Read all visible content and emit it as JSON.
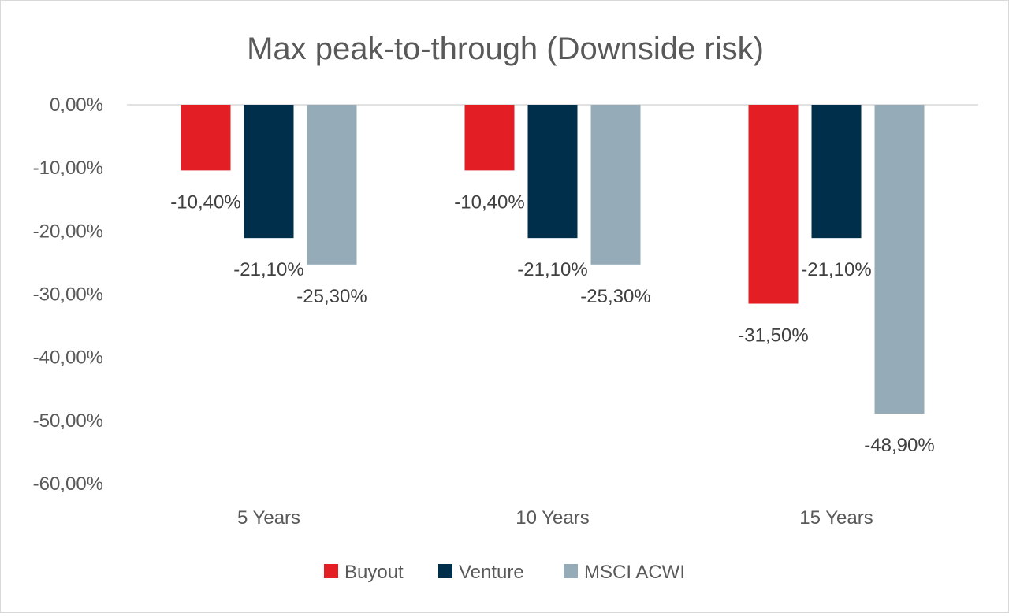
{
  "chart_data": {
    "type": "bar",
    "title": "Max peak-to-through (Downside risk)",
    "categories": [
      "5 Years",
      "10 Years",
      "15 Years"
    ],
    "series": [
      {
        "name": "Buyout",
        "color": "#e31e25",
        "values": [
          -10.4,
          -10.4,
          -31.5
        ],
        "labels": [
          "-10,40%",
          "-10,40%",
          "-31,50%"
        ]
      },
      {
        "name": "Venture",
        "color": "#002f4c",
        "values": [
          -21.1,
          -21.1,
          -21.1
        ],
        "labels": [
          "-21,10%",
          "-21,10%",
          "-21,10%"
        ]
      },
      {
        "name": "MSCI ACWI",
        "color": "#96abb8",
        "values": [
          -25.3,
          -25.3,
          -48.9
        ],
        "labels": [
          "-25,30%",
          "-25,30%",
          "-48,90%"
        ]
      }
    ],
    "ylim": [
      -60,
      0
    ],
    "yticks": [
      0,
      -10,
      -20,
      -30,
      -40,
      -50,
      -60
    ],
    "ytick_labels": [
      "0,00%",
      "-10,00%",
      "-20,00%",
      "-30,00%",
      "-40,00%",
      "-50,00%",
      "-60,00%"
    ],
    "xlabel": "",
    "ylabel": "",
    "grid": false,
    "legend_position": "bottom"
  }
}
